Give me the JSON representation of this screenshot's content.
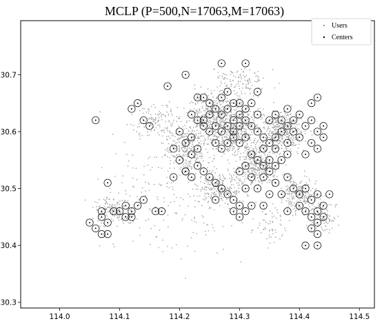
{
  "chart_data": {
    "type": "scatter",
    "title": "MCLP (P=500,N=17063,M=17063)",
    "xlabel": "",
    "ylabel": "",
    "xlim": [
      113.935,
      114.525
    ],
    "ylim": [
      30.29,
      30.795
    ],
    "x_ticks": [
      "114.0",
      "114.1",
      "114.2",
      "114.3",
      "114.4",
      "114.5"
    ],
    "y_ticks": [
      "30.3",
      "30.4",
      "30.5",
      "30.6",
      "30.7"
    ],
    "grid": false,
    "legend": {
      "position": "top-right",
      "entries": [
        "Users",
        "Centers"
      ]
    },
    "series": [
      {
        "name": "Users",
        "marker": "dot",
        "color": "#9a9a9a",
        "clusters": [
          {
            "center": [
              114.26,
              30.62
            ],
            "spread": [
              0.04,
              0.04
            ],
            "count": 500
          },
          {
            "center": [
              114.3,
              30.6
            ],
            "spread": [
              0.04,
              0.04
            ],
            "count": 380
          },
          {
            "center": [
              114.37,
              30.6
            ],
            "spread": [
              0.03,
              0.03
            ],
            "count": 360
          },
          {
            "center": [
              114.33,
              30.54
            ],
            "spread": [
              0.03,
              0.03
            ],
            "count": 320
          },
          {
            "center": [
              114.21,
              30.57
            ],
            "spread": [
              0.025,
              0.03
            ],
            "count": 240
          },
          {
            "center": [
              114.4,
              30.49
            ],
            "spread": [
              0.025,
              0.03
            ],
            "count": 220
          },
          {
            "center": [
              114.27,
              30.5
            ],
            "spread": [
              0.03,
              0.025
            ],
            "count": 200
          },
          {
            "center": [
              114.09,
              30.46
            ],
            "spread": [
              0.03,
              0.02
            ],
            "count": 150
          },
          {
            "center": [
              114.16,
              30.62
            ],
            "spread": [
              0.03,
              0.025
            ],
            "count": 120
          },
          {
            "center": [
              114.3,
              30.69
            ],
            "spread": [
              0.04,
              0.02
            ],
            "count": 120
          },
          {
            "center": [
              114.44,
              30.45
            ],
            "spread": [
              0.02,
              0.025
            ],
            "count": 100
          },
          {
            "center": [
              114.35,
              30.44
            ],
            "spread": [
              0.03,
              0.03
            ],
            "count": 60
          },
          {
            "center": [
              114.2,
              30.5
            ],
            "spread": [
              0.1,
              0.1
            ],
            "count": 260
          }
        ]
      },
      {
        "name": "Centers",
        "marker": "circled-dot",
        "color": "#000000",
        "points": [
          [
            114.06,
            30.62
          ],
          [
            114.12,
            30.64
          ],
          [
            114.13,
            30.65
          ],
          [
            114.14,
            30.62
          ],
          [
            114.15,
            30.61
          ],
          [
            114.18,
            30.68
          ],
          [
            114.21,
            30.7
          ],
          [
            114.27,
            30.72
          ],
          [
            114.31,
            30.72
          ],
          [
            114.33,
            30.67
          ],
          [
            114.43,
            30.66
          ],
          [
            114.42,
            30.65
          ],
          [
            114.38,
            30.64
          ],
          [
            114.36,
            30.63
          ],
          [
            114.23,
            30.66
          ],
          [
            114.24,
            30.66
          ],
          [
            114.25,
            30.65
          ],
          [
            114.26,
            30.64
          ],
          [
            114.27,
            30.66
          ],
          [
            114.28,
            30.64
          ],
          [
            114.29,
            30.65
          ],
          [
            114.3,
            30.65
          ],
          [
            114.31,
            30.64
          ],
          [
            114.32,
            30.65
          ],
          [
            114.33,
            30.63
          ],
          [
            114.22,
            30.63
          ],
          [
            114.23,
            30.62
          ],
          [
            114.24,
            30.61
          ],
          [
            114.25,
            30.6
          ],
          [
            114.26,
            30.61
          ],
          [
            114.27,
            30.6
          ],
          [
            114.28,
            30.61
          ],
          [
            114.29,
            30.62
          ],
          [
            114.3,
            30.61
          ],
          [
            114.31,
            30.62
          ],
          [
            114.32,
            30.61
          ],
          [
            114.26,
            30.58
          ],
          [
            114.27,
            30.57
          ],
          [
            114.28,
            30.58
          ],
          [
            114.29,
            30.59
          ],
          [
            114.3,
            30.58
          ],
          [
            114.31,
            30.59
          ],
          [
            114.2,
            30.6
          ],
          [
            114.21,
            30.58
          ],
          [
            114.19,
            30.57
          ],
          [
            114.2,
            30.55
          ],
          [
            114.22,
            30.56
          ],
          [
            114.23,
            30.57
          ],
          [
            114.21,
            30.53
          ],
          [
            114.22,
            30.52
          ],
          [
            114.24,
            30.53
          ],
          [
            114.25,
            30.52
          ],
          [
            114.26,
            30.51
          ],
          [
            114.23,
            30.54
          ],
          [
            114.33,
            30.6
          ],
          [
            114.34,
            30.59
          ],
          [
            114.35,
            30.58
          ],
          [
            114.36,
            30.59
          ],
          [
            114.37,
            30.6
          ],
          [
            114.38,
            30.61
          ],
          [
            114.39,
            30.62
          ],
          [
            114.4,
            30.63
          ],
          [
            114.41,
            30.61
          ],
          [
            114.42,
            30.62
          ],
          [
            114.43,
            30.6
          ],
          [
            114.44,
            30.61
          ],
          [
            114.35,
            30.62
          ],
          [
            114.37,
            30.62
          ],
          [
            114.39,
            30.6
          ],
          [
            114.36,
            30.57
          ],
          [
            114.38,
            30.58
          ],
          [
            114.4,
            30.59
          ],
          [
            114.42,
            30.58
          ],
          [
            114.44,
            30.59
          ],
          [
            114.41,
            30.56
          ],
          [
            114.43,
            30.57
          ],
          [
            114.32,
            30.56
          ],
          [
            114.33,
            30.55
          ],
          [
            114.34,
            30.54
          ],
          [
            114.35,
            30.55
          ],
          [
            114.36,
            30.54
          ],
          [
            114.37,
            30.55
          ],
          [
            114.31,
            30.54
          ],
          [
            114.3,
            30.53
          ],
          [
            114.32,
            30.52
          ],
          [
            114.34,
            30.52
          ],
          [
            114.36,
            30.51
          ],
          [
            114.38,
            30.52
          ],
          [
            114.31,
            30.5
          ],
          [
            114.33,
            30.5
          ],
          [
            114.35,
            30.49
          ],
          [
            114.37,
            30.49
          ],
          [
            114.27,
            30.5
          ],
          [
            114.28,
            30.49
          ],
          [
            114.29,
            30.48
          ],
          [
            114.3,
            30.47
          ],
          [
            114.29,
            30.46
          ],
          [
            114.31,
            30.46
          ],
          [
            114.3,
            30.45
          ],
          [
            114.32,
            30.47
          ],
          [
            114.34,
            30.47
          ],
          [
            114.26,
            30.48
          ],
          [
            114.39,
            30.5
          ],
          [
            114.4,
            30.49
          ],
          [
            114.41,
            30.5
          ],
          [
            114.42,
            30.48
          ],
          [
            114.43,
            30.49
          ],
          [
            114.4,
            30.47
          ],
          [
            114.41,
            30.46
          ],
          [
            114.42,
            30.45
          ],
          [
            114.43,
            30.46
          ],
          [
            114.44,
            30.47
          ],
          [
            114.45,
            30.49
          ],
          [
            114.44,
            30.45
          ],
          [
            114.43,
            30.44
          ],
          [
            114.42,
            30.43
          ],
          [
            114.43,
            30.42
          ],
          [
            114.41,
            30.4
          ],
          [
            114.43,
            30.4
          ],
          [
            114.38,
            30.46
          ],
          [
            114.05,
            30.44
          ],
          [
            114.06,
            30.43
          ],
          [
            114.07,
            30.45
          ],
          [
            114.08,
            30.44
          ],
          [
            114.07,
            30.42
          ],
          [
            114.08,
            30.42
          ],
          [
            114.07,
            30.46
          ],
          [
            114.09,
            30.46
          ],
          [
            114.1,
            30.46
          ],
          [
            114.11,
            30.47
          ],
          [
            114.12,
            30.46
          ],
          [
            114.11,
            30.45
          ],
          [
            114.13,
            30.47
          ],
          [
            114.14,
            30.48
          ],
          [
            114.16,
            30.46
          ],
          [
            114.12,
            30.45
          ],
          [
            114.17,
            30.46
          ],
          [
            114.08,
            30.51
          ],
          [
            114.19,
            30.52
          ],
          [
            114.21,
            30.53
          ],
          [
            114.24,
            30.62
          ],
          [
            114.27,
            30.63
          ],
          [
            114.3,
            30.63
          ],
          [
            114.28,
            30.67
          ],
          [
            114.25,
            30.63
          ],
          [
            114.29,
            30.6
          ],
          [
            114.22,
            30.59
          ],
          [
            114.34,
            30.57
          ],
          [
            114.35,
            30.53
          ],
          [
            114.38,
            30.56
          ]
        ]
      }
    ]
  }
}
